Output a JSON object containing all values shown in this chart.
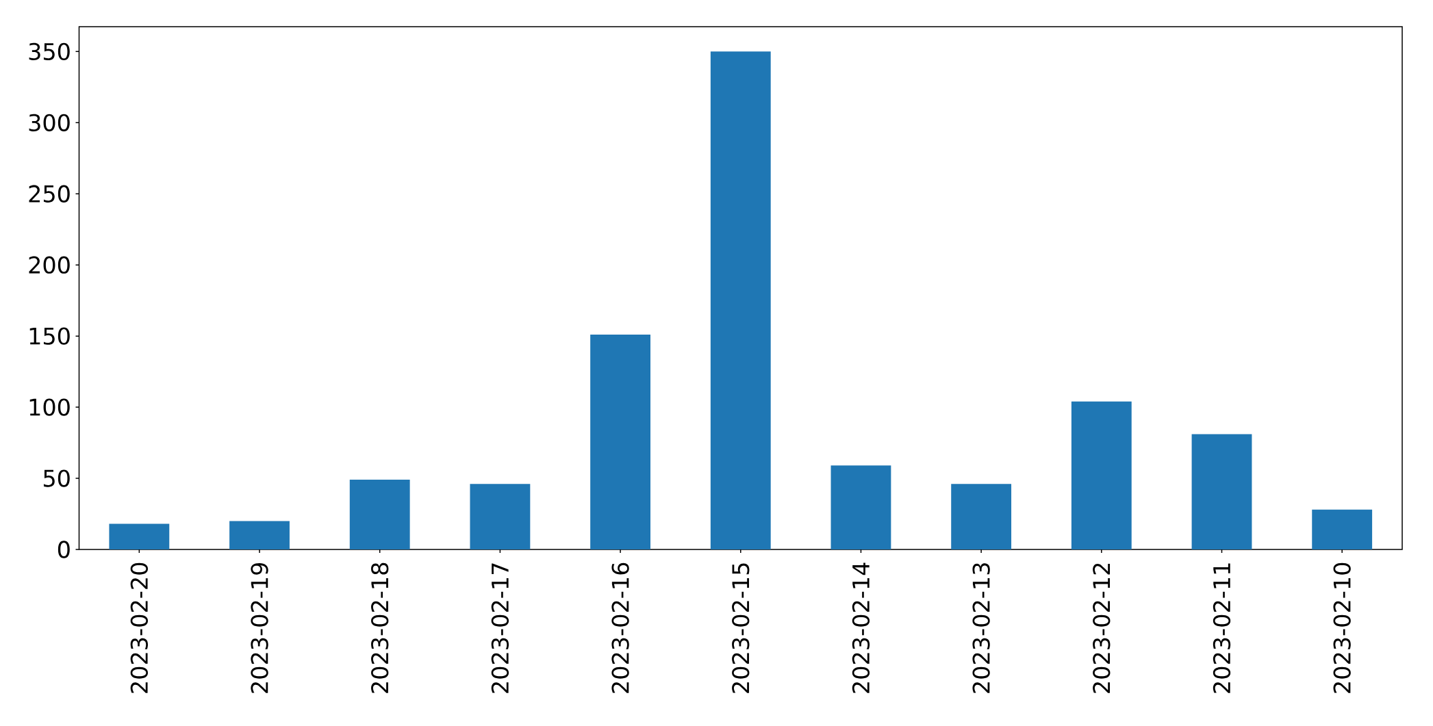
{
  "chart_data": {
    "type": "bar",
    "categories": [
      "2023-02-20",
      "2023-02-19",
      "2023-02-18",
      "2023-02-17",
      "2023-02-16",
      "2023-02-15",
      "2023-02-14",
      "2023-02-13",
      "2023-02-12",
      "2023-02-11",
      "2023-02-10"
    ],
    "values": [
      18,
      20,
      49,
      46,
      151,
      350,
      59,
      46,
      104,
      81,
      28
    ],
    "color": "#1f77b4",
    "ylim": [
      0,
      367.5
    ],
    "yticks": [
      0,
      50,
      100,
      150,
      200,
      250,
      300,
      350
    ]
  }
}
